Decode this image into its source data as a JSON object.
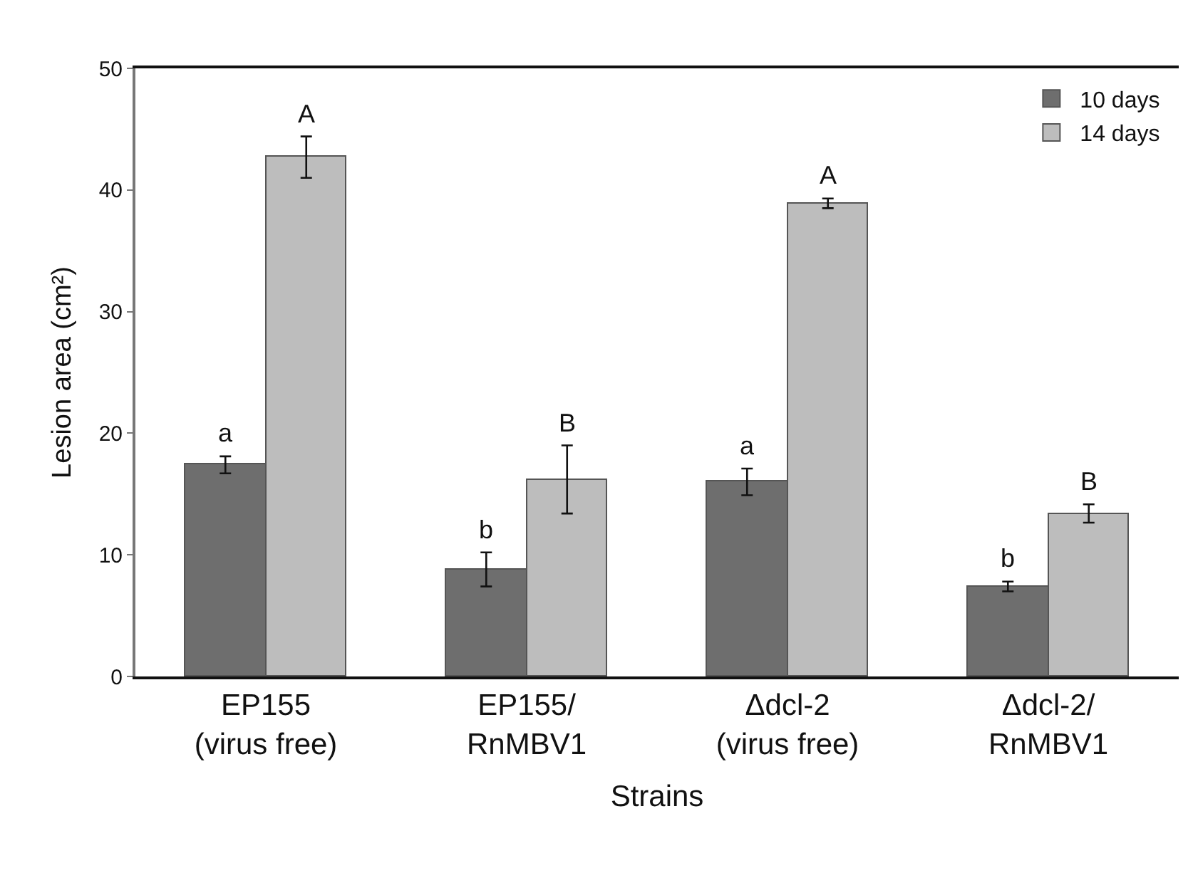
{
  "chart_data": {
    "type": "bar",
    "xlabel": "Strains",
    "ylabel": "Lesion area (cm²)",
    "categories": [
      "EP155\n(virus free)",
      "EP155/\nRnMBV1",
      "Δdcl-2\n(virus free)",
      "Δdcl-2/\nRnMBV1"
    ],
    "series": [
      {
        "name": "10 days",
        "color": "#6e6e6e",
        "values": [
          17.4,
          8.8,
          16.0,
          7.4
        ],
        "errors": [
          0.7,
          1.4,
          1.1,
          0.4
        ]
      },
      {
        "name": "14 days",
        "color": "#bdbdbd",
        "values": [
          42.7,
          16.2,
          38.9,
          13.4
        ],
        "errors": [
          1.7,
          2.8,
          0.4,
          0.75
        ]
      }
    ],
    "ylim": [
      0,
      50
    ],
    "yticks": [
      0,
      10,
      20,
      30,
      40,
      50
    ],
    "annotations": [
      {
        "text": "a",
        "x": "EP155\n(virus free)",
        "y": 17.4
      },
      {
        "text": "A",
        "x": "EP155\n(virus free)",
        "y": 42.7
      },
      {
        "text": "b",
        "x": "EP155/\nRnMBV1",
        "y": 8.8
      },
      {
        "text": "B",
        "x": "EP155/\nRnMBV1",
        "y": 16.2
      },
      {
        "text": "a",
        "x": "Δdcl-2\n(virus free)",
        "y": 16.0
      },
      {
        "text": "A",
        "x": "Δdcl-2\n(virus free)",
        "y": 38.9
      },
      {
        "text": "b",
        "x": "Δdcl-2/\nRnMBV1",
        "y": 7.4
      },
      {
        "text": "B",
        "x": "Δdcl-2/\nRnMBV1",
        "y": 13.4
      }
    ],
    "grid": false,
    "legend": "top right"
  }
}
